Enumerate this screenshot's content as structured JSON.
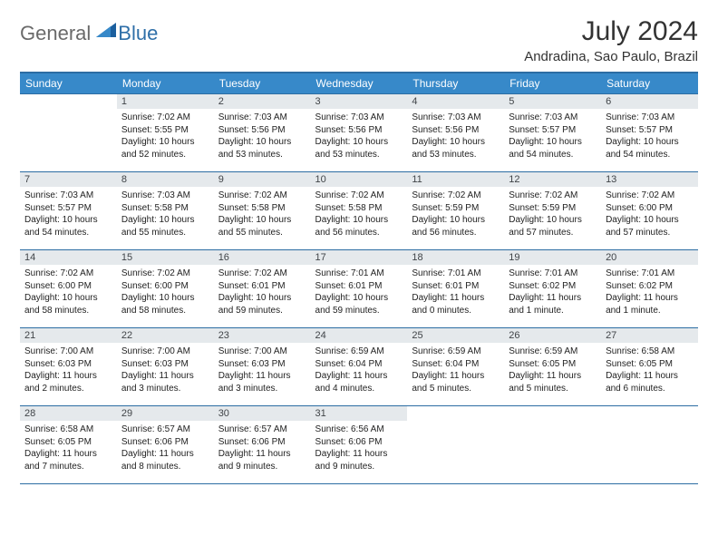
{
  "logo": {
    "text1": "General",
    "text2": "Blue"
  },
  "title": "July 2024",
  "location": "Andradina, Sao Paulo, Brazil",
  "colors": {
    "header_bg": "#3789c9",
    "header_border": "#2c6da3",
    "daynum_bg": "#e5e9ec",
    "logo_gray": "#6a6a6a",
    "logo_blue": "#2f6fa8",
    "sail_blue": "#1b5f9e"
  },
  "weekday_headers": [
    "Sunday",
    "Monday",
    "Tuesday",
    "Wednesday",
    "Thursday",
    "Friday",
    "Saturday"
  ],
  "weeks": [
    [
      {
        "day": "",
        "lines": []
      },
      {
        "day": "1",
        "lines": [
          "Sunrise: 7:02 AM",
          "Sunset: 5:55 PM",
          "Daylight: 10 hours and 52 minutes."
        ]
      },
      {
        "day": "2",
        "lines": [
          "Sunrise: 7:03 AM",
          "Sunset: 5:56 PM",
          "Daylight: 10 hours and 53 minutes."
        ]
      },
      {
        "day": "3",
        "lines": [
          "Sunrise: 7:03 AM",
          "Sunset: 5:56 PM",
          "Daylight: 10 hours and 53 minutes."
        ]
      },
      {
        "day": "4",
        "lines": [
          "Sunrise: 7:03 AM",
          "Sunset: 5:56 PM",
          "Daylight: 10 hours and 53 minutes."
        ]
      },
      {
        "day": "5",
        "lines": [
          "Sunrise: 7:03 AM",
          "Sunset: 5:57 PM",
          "Daylight: 10 hours and 54 minutes."
        ]
      },
      {
        "day": "6",
        "lines": [
          "Sunrise: 7:03 AM",
          "Sunset: 5:57 PM",
          "Daylight: 10 hours and 54 minutes."
        ]
      }
    ],
    [
      {
        "day": "7",
        "lines": [
          "Sunrise: 7:03 AM",
          "Sunset: 5:57 PM",
          "Daylight: 10 hours and 54 minutes."
        ]
      },
      {
        "day": "8",
        "lines": [
          "Sunrise: 7:03 AM",
          "Sunset: 5:58 PM",
          "Daylight: 10 hours and 55 minutes."
        ]
      },
      {
        "day": "9",
        "lines": [
          "Sunrise: 7:02 AM",
          "Sunset: 5:58 PM",
          "Daylight: 10 hours and 55 minutes."
        ]
      },
      {
        "day": "10",
        "lines": [
          "Sunrise: 7:02 AM",
          "Sunset: 5:58 PM",
          "Daylight: 10 hours and 56 minutes."
        ]
      },
      {
        "day": "11",
        "lines": [
          "Sunrise: 7:02 AM",
          "Sunset: 5:59 PM",
          "Daylight: 10 hours and 56 minutes."
        ]
      },
      {
        "day": "12",
        "lines": [
          "Sunrise: 7:02 AM",
          "Sunset: 5:59 PM",
          "Daylight: 10 hours and 57 minutes."
        ]
      },
      {
        "day": "13",
        "lines": [
          "Sunrise: 7:02 AM",
          "Sunset: 6:00 PM",
          "Daylight: 10 hours and 57 minutes."
        ]
      }
    ],
    [
      {
        "day": "14",
        "lines": [
          "Sunrise: 7:02 AM",
          "Sunset: 6:00 PM",
          "Daylight: 10 hours and 58 minutes."
        ]
      },
      {
        "day": "15",
        "lines": [
          "Sunrise: 7:02 AM",
          "Sunset: 6:00 PM",
          "Daylight: 10 hours and 58 minutes."
        ]
      },
      {
        "day": "16",
        "lines": [
          "Sunrise: 7:02 AM",
          "Sunset: 6:01 PM",
          "Daylight: 10 hours and 59 minutes."
        ]
      },
      {
        "day": "17",
        "lines": [
          "Sunrise: 7:01 AM",
          "Sunset: 6:01 PM",
          "Daylight: 10 hours and 59 minutes."
        ]
      },
      {
        "day": "18",
        "lines": [
          "Sunrise: 7:01 AM",
          "Sunset: 6:01 PM",
          "Daylight: 11 hours and 0 minutes."
        ]
      },
      {
        "day": "19",
        "lines": [
          "Sunrise: 7:01 AM",
          "Sunset: 6:02 PM",
          "Daylight: 11 hours and 1 minute."
        ]
      },
      {
        "day": "20",
        "lines": [
          "Sunrise: 7:01 AM",
          "Sunset: 6:02 PM",
          "Daylight: 11 hours and 1 minute."
        ]
      }
    ],
    [
      {
        "day": "21",
        "lines": [
          "Sunrise: 7:00 AM",
          "Sunset: 6:03 PM",
          "Daylight: 11 hours and 2 minutes."
        ]
      },
      {
        "day": "22",
        "lines": [
          "Sunrise: 7:00 AM",
          "Sunset: 6:03 PM",
          "Daylight: 11 hours and 3 minutes."
        ]
      },
      {
        "day": "23",
        "lines": [
          "Sunrise: 7:00 AM",
          "Sunset: 6:03 PM",
          "Daylight: 11 hours and 3 minutes."
        ]
      },
      {
        "day": "24",
        "lines": [
          "Sunrise: 6:59 AM",
          "Sunset: 6:04 PM",
          "Daylight: 11 hours and 4 minutes."
        ]
      },
      {
        "day": "25",
        "lines": [
          "Sunrise: 6:59 AM",
          "Sunset: 6:04 PM",
          "Daylight: 11 hours and 5 minutes."
        ]
      },
      {
        "day": "26",
        "lines": [
          "Sunrise: 6:59 AM",
          "Sunset: 6:05 PM",
          "Daylight: 11 hours and 5 minutes."
        ]
      },
      {
        "day": "27",
        "lines": [
          "Sunrise: 6:58 AM",
          "Sunset: 6:05 PM",
          "Daylight: 11 hours and 6 minutes."
        ]
      }
    ],
    [
      {
        "day": "28",
        "lines": [
          "Sunrise: 6:58 AM",
          "Sunset: 6:05 PM",
          "Daylight: 11 hours and 7 minutes."
        ]
      },
      {
        "day": "29",
        "lines": [
          "Sunrise: 6:57 AM",
          "Sunset: 6:06 PM",
          "Daylight: 11 hours and 8 minutes."
        ]
      },
      {
        "day": "30",
        "lines": [
          "Sunrise: 6:57 AM",
          "Sunset: 6:06 PM",
          "Daylight: 11 hours and 9 minutes."
        ]
      },
      {
        "day": "31",
        "lines": [
          "Sunrise: 6:56 AM",
          "Sunset: 6:06 PM",
          "Daylight: 11 hours and 9 minutes."
        ]
      },
      {
        "day": "",
        "lines": []
      },
      {
        "day": "",
        "lines": []
      },
      {
        "day": "",
        "lines": []
      }
    ]
  ]
}
